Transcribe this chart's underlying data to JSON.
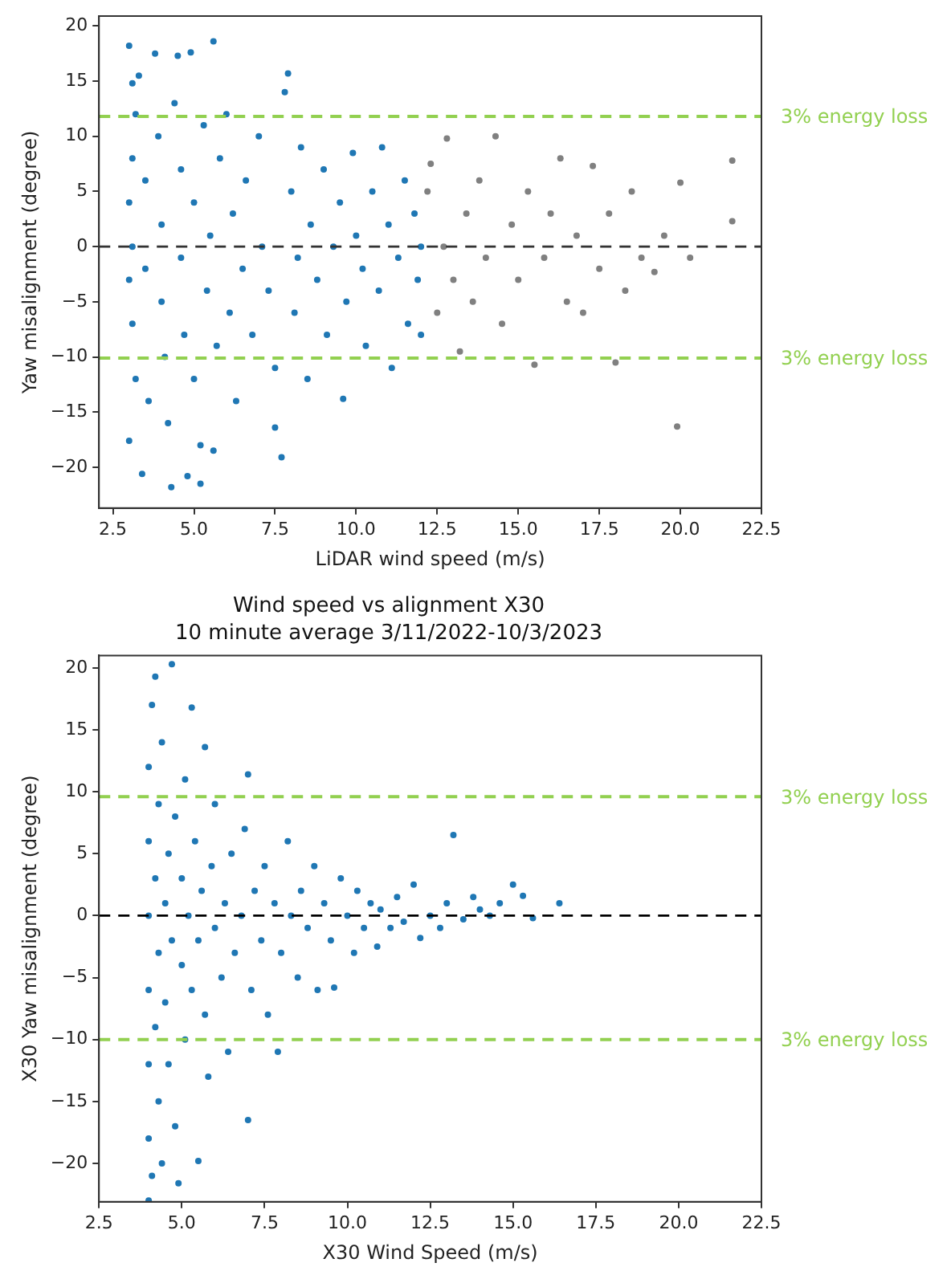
{
  "chart_data": [
    {
      "type": "scatter",
      "xlabel": "LiDAR wind speed (m/s)",
      "ylabel": "Yaw misalignment (degree)",
      "xlim": [
        2.07,
        22.5
      ],
      "ylim": [
        -23.7,
        20.9
      ],
      "xticks": [
        2.5,
        {
          "value": 5,
          "label": "5.0"
        },
        7.5,
        {
          "value": 10,
          "label": "10.0"
        },
        12.5,
        {
          "value": 15,
          "label": "15.0"
        },
        17.5,
        {
          "value": 20,
          "label": "20.0"
        },
        22.5
      ],
      "yticks": [
        {
          "value": -20,
          "label": "−20"
        },
        {
          "value": -15,
          "label": "−15"
        },
        {
          "value": -10,
          "label": "−10"
        },
        {
          "value": -5,
          "label": "−5"
        },
        0,
        5,
        10,
        15,
        20
      ],
      "grid": false,
      "legend": false,
      "marker": "circle",
      "ref_lines": [
        {
          "axis": "y",
          "value": 11.8,
          "label": "3% energy loss",
          "color": "#92d050",
          "line_style": "dashed"
        },
        {
          "axis": "y",
          "value": -10.1,
          "label": "3% energy loss",
          "color": "#92d050",
          "line_style": "dashed"
        },
        {
          "axis": "y",
          "value": 0,
          "color": "#333333",
          "line_style": "dashed"
        }
      ],
      "series": [
        {
          "color": "#1f77b4",
          "x": [
            3.0,
            3.1,
            3.2,
            3.1,
            3.0,
            3.1,
            3.0,
            3.1,
            3.2,
            3.0,
            3.4,
            3.3,
            3.5,
            3.5,
            3.6,
            3.8,
            3.9,
            4.0,
            4.0,
            4.1,
            4.2,
            4.3,
            4.4,
            4.5,
            4.6,
            4.6,
            4.7,
            4.8,
            4.9,
            5.0,
            5.0,
            5.2,
            5.2,
            5.3,
            5.4,
            5.5,
            5.6,
            5.6,
            5.7,
            5.8,
            6.0,
            6.1,
            6.2,
            6.3,
            6.5,
            6.6,
            6.8,
            7.0,
            7.1,
            7.3,
            7.5,
            7.5,
            7.7,
            7.8,
            7.9,
            8.0,
            8.1,
            8.2,
            8.3,
            8.5,
            8.6,
            8.8,
            9.0,
            9.1,
            9.3,
            9.5,
            9.6,
            9.7,
            9.9,
            10.0,
            10.2,
            10.3,
            10.5,
            10.7,
            10.8,
            11.0,
            11.1,
            11.3,
            11.5,
            11.6,
            11.8,
            11.9,
            12.0,
            12.0
          ],
          "values": [
            18.2,
            14.8,
            12,
            8,
            4,
            0,
            -3,
            -7,
            -12,
            -17.6,
            -20.6,
            15.5,
            6,
            -2,
            -14,
            17.5,
            10,
            2,
            -5,
            -10,
            -16,
            -21.8,
            13,
            17.3,
            7,
            -1,
            -8,
            -20.8,
            17.6,
            4,
            -12,
            -21.5,
            -18,
            11,
            -4,
            1,
            18.6,
            -18.5,
            -9,
            8,
            12,
            -6,
            3,
            -14,
            -2,
            6,
            -8,
            10,
            0,
            -4,
            -16.4,
            -11,
            -19.1,
            14,
            15.7,
            5,
            -6,
            -1,
            9,
            -12,
            2,
            -3,
            7,
            -8,
            0,
            4,
            -13.8,
            -5,
            8.5,
            1,
            -2,
            -9,
            5,
            -4,
            9,
            2,
            -11,
            -1,
            6,
            -7,
            3,
            -3,
            0,
            -8
          ]
        },
        {
          "color": "#808080",
          "x": [
            12.2,
            12.3,
            12.5,
            12.7,
            12.8,
            13.0,
            13.2,
            13.4,
            13.6,
            13.8,
            14.0,
            14.3,
            14.5,
            14.8,
            15.0,
            15.3,
            15.5,
            15.8,
            16.0,
            16.3,
            16.5,
            16.8,
            17.0,
            17.3,
            17.5,
            17.8,
            18.0,
            18.3,
            18.5,
            18.8,
            19.2,
            19.5,
            19.9,
            20.0,
            20.3,
            21.6,
            21.6
          ],
          "values": [
            5,
            7.5,
            -6,
            0,
            9.8,
            -3,
            -9.5,
            3,
            -5,
            6,
            -1,
            10,
            -7,
            2,
            -3,
            5,
            -10.7,
            -1,
            3,
            8,
            -5,
            1,
            -6,
            7.3,
            -2,
            3,
            -10.5,
            -4,
            5,
            -1,
            -2.3,
            1,
            -16.3,
            5.8,
            -1,
            7.8,
            2.3
          ]
        }
      ]
    },
    {
      "type": "scatter",
      "title": "Wind speed vs alignment X30",
      "subtitle": "10 minute average 3/11/2022-10/3/2023",
      "xlabel": "X30 Wind Speed (m/s)",
      "ylabel": "X30 Yaw misalignment (degree)",
      "xlim": [
        2.5,
        22.5
      ],
      "ylim": [
        -23.1,
        21.0
      ],
      "xticks": [
        2.5,
        {
          "value": 5,
          "label": "5.0"
        },
        7.5,
        {
          "value": 10,
          "label": "10.0"
        },
        12.5,
        {
          "value": 15,
          "label": "15.0"
        },
        17.5,
        {
          "value": 20,
          "label": "20.0"
        },
        22.5
      ],
      "yticks": [
        {
          "value": -20,
          "label": "−20"
        },
        {
          "value": -15,
          "label": "−15"
        },
        {
          "value": -10,
          "label": "−10"
        },
        {
          "value": -5,
          "label": "−5"
        },
        0,
        5,
        10,
        15,
        20
      ],
      "grid": false,
      "legend": false,
      "marker": "circle",
      "ref_lines": [
        {
          "axis": "y",
          "value": 9.6,
          "label": "3% energy loss",
          "color": "#92d050",
          "line_style": "dashed"
        },
        {
          "axis": "y",
          "value": -10,
          "label": "3% energy loss",
          "color": "#92d050",
          "line_style": "dashed"
        },
        {
          "axis": "y",
          "value": 0,
          "color": "#000000",
          "line_style": "dashed"
        }
      ],
      "series": [
        {
          "color": "#1f77b4",
          "x": [
            4.0,
            4.0,
            4.0,
            4.0,
            4.0,
            4.0,
            4.0,
            4.1,
            4.1,
            4.2,
            4.2,
            4.2,
            4.3,
            4.3,
            4.3,
            4.4,
            4.4,
            4.5,
            4.5,
            4.6,
            4.6,
            4.7,
            4.7,
            4.8,
            4.8,
            4.9,
            5.0,
            5.0,
            5.1,
            5.1,
            5.2,
            5.3,
            5.3,
            5.4,
            5.5,
            5.5,
            5.6,
            5.7,
            5.7,
            5.8,
            5.9,
            6.0,
            6.0,
            6.2,
            6.3,
            6.4,
            6.5,
            6.6,
            6.8,
            6.9,
            7.0,
            7.0,
            7.1,
            7.2,
            7.4,
            7.5,
            7.6,
            7.8,
            7.9,
            8.0,
            8.2,
            8.3,
            8.5,
            8.6,
            8.8,
            9.0,
            9.1,
            9.3,
            9.5,
            9.6,
            9.8,
            10.0,
            10.2,
            10.3,
            10.5,
            10.7,
            10.9,
            11.0,
            11.3,
            11.5,
            11.7,
            12.0,
            12.2,
            12.5,
            12.8,
            13.0,
            13.2,
            13.5,
            13.8,
            14.0,
            14.3,
            14.6,
            15.0,
            15.3,
            15.6,
            16.4
          ],
          "values": [
            -23,
            -18,
            -12,
            -6,
            0,
            6,
            12,
            17,
            -21,
            19.3,
            3,
            -9,
            -3,
            9,
            -15,
            14,
            -20,
            1,
            -7,
            5,
            -12,
            20.3,
            -2,
            8,
            -17,
            -21.6,
            -4,
            3,
            11,
            -10,
            0,
            16.8,
            -6,
            6,
            -19.8,
            -2,
            2,
            13.6,
            -8,
            -13,
            4,
            -1,
            9,
            -5,
            1,
            -11,
            5,
            -3,
            0,
            7,
            11.4,
            -16.5,
            -6,
            2,
            -2,
            4,
            -8,
            1,
            -11,
            -3,
            6,
            0,
            -5,
            2,
            -1,
            4,
            -6,
            1,
            -2,
            -5.8,
            3,
            0,
            -3,
            2,
            -1,
            1,
            -2.5,
            0.5,
            -1,
            1.5,
            -0.5,
            2.5,
            -1.8,
            0,
            -1,
            1,
            6.5,
            -0.3,
            1.5,
            0.5,
            0,
            1,
            2.5,
            1.6,
            -0.2,
            1
          ]
        }
      ]
    }
  ]
}
